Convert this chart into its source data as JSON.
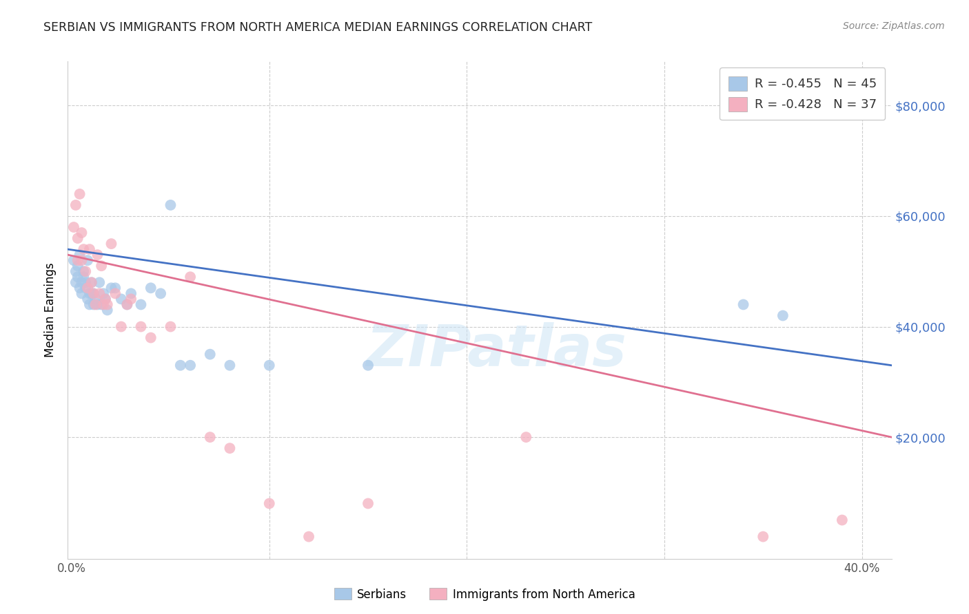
{
  "title": "SERBIAN VS IMMIGRANTS FROM NORTH AMERICA MEDIAN EARNINGS CORRELATION CHART",
  "source": "Source: ZipAtlas.com",
  "ylabel": "Median Earnings",
  "yticks": [
    0,
    20000,
    40000,
    60000,
    80000
  ],
  "ytick_labels": [
    "",
    "$20,000",
    "$40,000",
    "$60,000",
    "$80,000"
  ],
  "ylim": [
    -2000,
    88000
  ],
  "xlim": [
    -0.002,
    0.415
  ],
  "watermark": "ZIPatlas",
  "legend_entries": [
    {
      "label": "R = -0.455   N = 45"
    },
    {
      "label": "R = -0.428   N = 37"
    }
  ],
  "bottom_legend": [
    {
      "label": "Serbians"
    },
    {
      "label": "Immigrants from North America"
    }
  ],
  "serbians_x": [
    0.001,
    0.002,
    0.002,
    0.003,
    0.003,
    0.004,
    0.004,
    0.005,
    0.005,
    0.006,
    0.006,
    0.007,
    0.007,
    0.008,
    0.008,
    0.009,
    0.009,
    0.01,
    0.01,
    0.011,
    0.011,
    0.012,
    0.013,
    0.014,
    0.015,
    0.016,
    0.017,
    0.018,
    0.02,
    0.022,
    0.025,
    0.028,
    0.03,
    0.035,
    0.04,
    0.045,
    0.05,
    0.055,
    0.06,
    0.07,
    0.08,
    0.1,
    0.15,
    0.34,
    0.36
  ],
  "serbians_y": [
    52000,
    50000,
    48000,
    49000,
    51000,
    47000,
    53000,
    48000,
    46000,
    50000,
    49000,
    48000,
    47000,
    52000,
    45000,
    46000,
    44000,
    48000,
    46000,
    46000,
    44000,
    45000,
    44000,
    48000,
    44000,
    46000,
    45000,
    43000,
    47000,
    47000,
    45000,
    44000,
    46000,
    44000,
    47000,
    46000,
    62000,
    33000,
    33000,
    35000,
    33000,
    33000,
    33000,
    44000,
    42000
  ],
  "immigrants_x": [
    0.001,
    0.002,
    0.003,
    0.003,
    0.004,
    0.005,
    0.005,
    0.006,
    0.007,
    0.008,
    0.009,
    0.01,
    0.011,
    0.012,
    0.013,
    0.014,
    0.015,
    0.016,
    0.017,
    0.018,
    0.02,
    0.022,
    0.025,
    0.028,
    0.03,
    0.035,
    0.04,
    0.05,
    0.06,
    0.07,
    0.08,
    0.1,
    0.12,
    0.15,
    0.23,
    0.35,
    0.39
  ],
  "immigrants_y": [
    58000,
    62000,
    56000,
    52000,
    64000,
    57000,
    52000,
    54000,
    50000,
    47000,
    54000,
    48000,
    46000,
    44000,
    53000,
    46000,
    51000,
    44000,
    45000,
    44000,
    55000,
    46000,
    40000,
    44000,
    45000,
    40000,
    38000,
    40000,
    49000,
    20000,
    18000,
    8000,
    2000,
    8000,
    20000,
    2000,
    5000
  ],
  "serbian_line_color": "#4472c4",
  "immigrant_line_color": "#e07090",
  "scatter_blue": "#a8c8e8",
  "scatter_pink": "#f4b0c0",
  "scatter_alpha": 0.75,
  "scatter_size": 130,
  "title_color": "#222222",
  "source_color": "#888888",
  "axis_label_color": "#555555",
  "right_tick_color": "#4472c4",
  "grid_color": "#cccccc",
  "watermark_color": "#cce4f5",
  "watermark_alpha": 0.55
}
